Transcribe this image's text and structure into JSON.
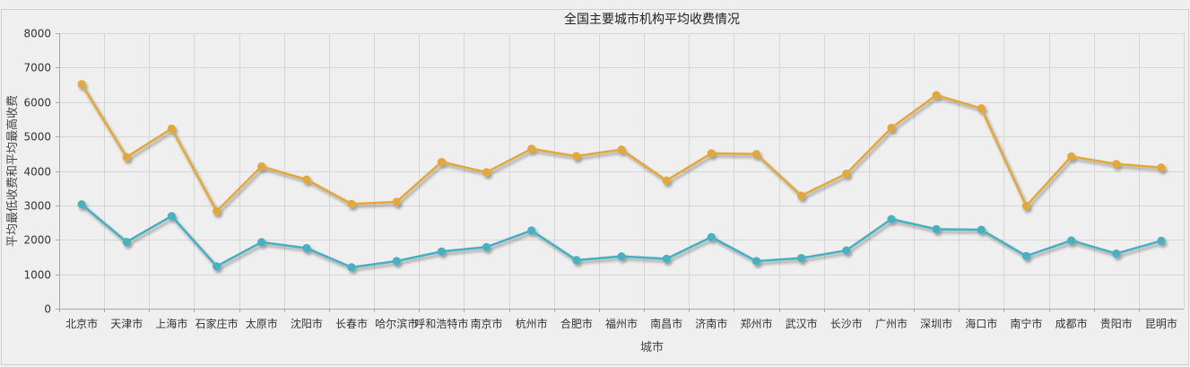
{
  "chart_data": {
    "type": "line",
    "title": "全国主要城市机构平均收费情况",
    "xlabel": "城市",
    "ylabel": "平均最低收费和平均最高收费",
    "ylim": [
      0,
      8000
    ],
    "yticks": [
      0,
      1000,
      2000,
      3000,
      4000,
      5000,
      6000,
      7000,
      8000
    ],
    "grid": true,
    "legend": "none",
    "categories": [
      "北京市",
      "天津市",
      "上海市",
      "石家庄市",
      "太原市",
      "沈阳市",
      "长春市",
      "哈尔滨市",
      "呼和浩特市",
      "南京市",
      "杭州市",
      "合肥市",
      "福州市",
      "南昌市",
      "济南市",
      "郑州市",
      "武汉市",
      "长沙市",
      "广州市",
      "深圳市",
      "海口市",
      "南宁市",
      "成都市",
      "贵阳市",
      "昆明市"
    ],
    "series": [
      {
        "color": "#e3a83a",
        "values": [
          6520,
          4400,
          5230,
          2830,
          4130,
          3750,
          3040,
          3100,
          4260,
          3960,
          4640,
          4430,
          4620,
          3720,
          4510,
          4490,
          3280,
          3920,
          5250,
          6200,
          5820,
          2980,
          4420,
          4200,
          4100
        ]
      },
      {
        "color": "#4ab0c1",
        "values": [
          3030,
          1940,
          2690,
          1230,
          1930,
          1760,
          1200,
          1380,
          1660,
          1790,
          2270,
          1410,
          1520,
          1450,
          2080,
          1380,
          1470,
          1690,
          2600,
          2310,
          2290,
          1530,
          1980,
          1600,
          1970
        ]
      }
    ]
  }
}
